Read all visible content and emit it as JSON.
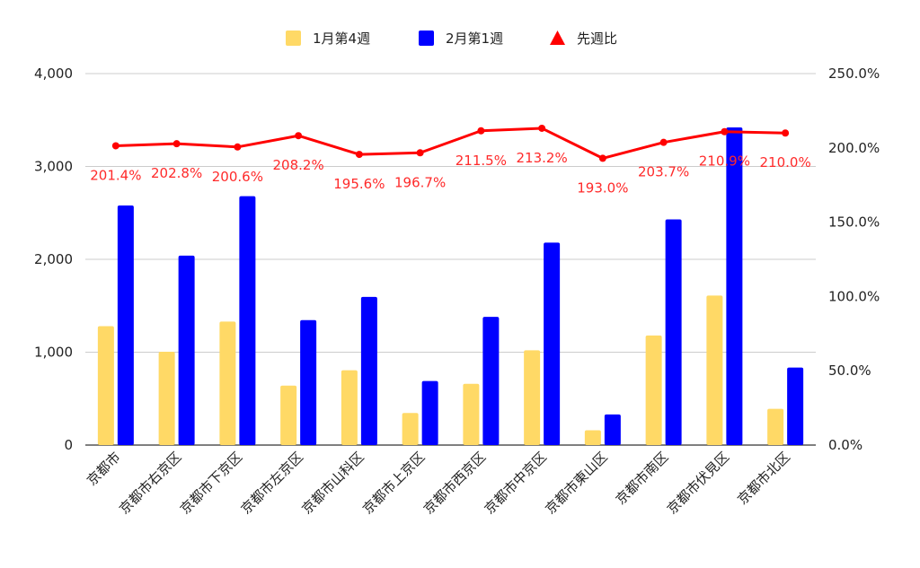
{
  "chart_data": {
    "type": "bar",
    "categories": [
      "京都市",
      "京都市右京区",
      "京都市下京区",
      "京都市左京区",
      "京都市山科区",
      "京都市上京区",
      "京都市西京区",
      "京都市中京区",
      "京都市東山区",
      "京都市南区",
      "京都市伏見区",
      "京都市北区"
    ],
    "series": [
      {
        "name": "1月第4週",
        "type": "bar",
        "axis": "left",
        "color": "#ffd966",
        "values": [
          1280,
          1005,
          1330,
          640,
          805,
          345,
          660,
          1020,
          160,
          1180,
          1610,
          390
        ]
      },
      {
        "name": "2月第1週",
        "type": "bar",
        "axis": "left",
        "color": "#0000ff",
        "values": [
          2580,
          2040,
          2680,
          1345,
          1595,
          690,
          1380,
          2180,
          330,
          2430,
          3420,
          835
        ]
      },
      {
        "name": "先週比",
        "type": "line",
        "axis": "right",
        "color": "#ff0000",
        "marker": "triangle",
        "values": [
          201.4,
          202.8,
          200.6,
          208.2,
          195.6,
          196.7,
          211.5,
          213.2,
          193.0,
          203.7,
          210.9,
          210.0
        ],
        "labels": [
          "201.4%",
          "202.8%",
          "200.6%",
          "208.2%",
          "195.6%",
          "196.7%",
          "211.5%",
          "213.2%",
          "193.0%",
          "203.7%",
          "210.9%",
          "210.0%"
        ]
      }
    ],
    "y_left": {
      "min": 0,
      "max": 4000,
      "ticks": [
        0,
        1000,
        2000,
        3000,
        4000
      ],
      "tick_labels": [
        "0",
        "1,000",
        "2,000",
        "3,000",
        "4,000"
      ]
    },
    "y_right": {
      "min": 0,
      "max": 250,
      "ticks": [
        0,
        50,
        100,
        150,
        200,
        250
      ],
      "tick_labels": [
        "0.0%",
        "50.0%",
        "100.0%",
        "150.0%",
        "200.0%",
        "250.0%"
      ]
    },
    "grid": true,
    "legend_position": "top-center"
  }
}
